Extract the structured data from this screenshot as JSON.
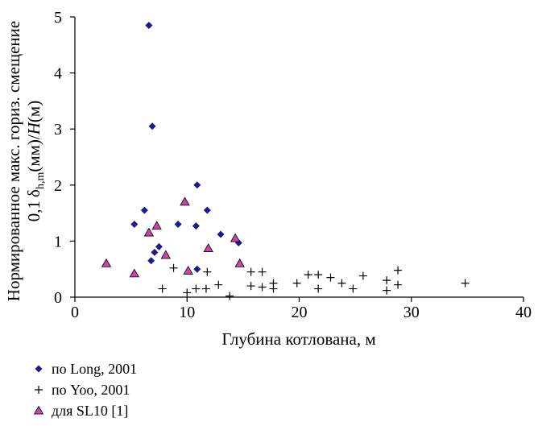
{
  "chart_data": {
    "type": "scatter",
    "xlabel": "Глубина котлована, м",
    "ylabel_parts": {
      "prefix": "Нормированное макс. гориз. смещение",
      "coef": "0,1",
      "delta": "δ",
      "sub": "h,m",
      "units": "(мм)/",
      "H": "H",
      "end": "(м)"
    },
    "xlim": [
      0,
      40
    ],
    "ylim": [
      0,
      5
    ],
    "xticks": [
      "0",
      "10",
      "20",
      "30",
      "40"
    ],
    "yticks": [
      "0",
      "1",
      "2",
      "3",
      "4",
      "5"
    ],
    "grid": false,
    "legend_position": "bottom-left",
    "series": [
      {
        "name": "по Long, 2001",
        "marker": "diamond",
        "color": "#1a1a8c",
        "points": [
          [
            6.6,
            4.85
          ],
          [
            6.9,
            3.05
          ],
          [
            10.9,
            2.0
          ],
          [
            6.2,
            1.55
          ],
          [
            11.8,
            1.55
          ],
          [
            5.3,
            1.3
          ],
          [
            9.2,
            1.3
          ],
          [
            10.8,
            1.27
          ],
          [
            13.0,
            1.12
          ],
          [
            14.6,
            0.97
          ],
          [
            7.5,
            0.9
          ],
          [
            7.1,
            0.8
          ],
          [
            6.8,
            0.65
          ],
          [
            10.9,
            0.5
          ]
        ]
      },
      {
        "name": "по Yoo, 2001",
        "marker": "plus",
        "color": "#000000",
        "points": [
          [
            7.8,
            0.15
          ],
          [
            8.8,
            0.52
          ],
          [
            10.0,
            0.08
          ],
          [
            10.8,
            0.15
          ],
          [
            11.8,
            0.45
          ],
          [
            11.7,
            0.15
          ],
          [
            12.8,
            0.22
          ],
          [
            13.8,
            0.02
          ],
          [
            15.7,
            0.45
          ],
          [
            16.7,
            0.45
          ],
          [
            15.7,
            0.2
          ],
          [
            16.7,
            0.18
          ],
          [
            17.7,
            0.15
          ],
          [
            17.7,
            0.25
          ],
          [
            19.8,
            0.25
          ],
          [
            20.8,
            0.4
          ],
          [
            21.7,
            0.4
          ],
          [
            21.7,
            0.15
          ],
          [
            22.8,
            0.35
          ],
          [
            23.8,
            0.25
          ],
          [
            24.8,
            0.15
          ],
          [
            25.7,
            0.38
          ],
          [
            27.8,
            0.3
          ],
          [
            27.8,
            0.12
          ],
          [
            28.8,
            0.48
          ],
          [
            28.8,
            0.22
          ],
          [
            34.8,
            0.25
          ]
        ]
      },
      {
        "name": "для SL10 [1]",
        "marker": "triangle",
        "color": "#cc44aa",
        "points": [
          [
            2.8,
            0.6
          ],
          [
            5.3,
            0.42
          ],
          [
            6.6,
            1.15
          ],
          [
            7.3,
            1.27
          ],
          [
            8.1,
            0.75
          ],
          [
            9.8,
            1.7
          ],
          [
            10.1,
            0.47
          ],
          [
            11.9,
            0.87
          ],
          [
            14.3,
            1.05
          ],
          [
            14.7,
            0.6
          ]
        ]
      }
    ]
  }
}
